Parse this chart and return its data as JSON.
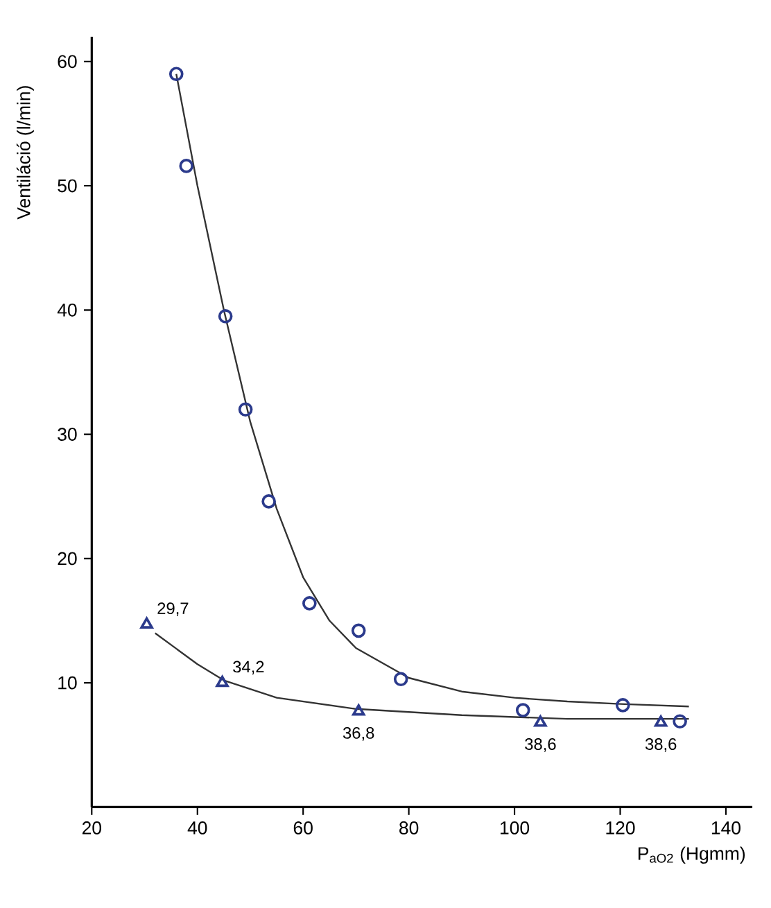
{
  "chart_data": {
    "type": "scatter",
    "xlabel": "P$_{aO2}$ (Hgmm)",
    "ylabel": "Ventiláció (l/min)",
    "xlim": [
      20,
      145
    ],
    "ylim": [
      0,
      62
    ],
    "xticks": [
      20,
      40,
      60,
      80,
      100,
      120,
      140
    ],
    "yticks": [
      10,
      20,
      30,
      40,
      50,
      60
    ],
    "annotations": [
      {
        "text": "29,7",
        "x": 30.4,
        "y": 14.7
      },
      {
        "text": "34,2",
        "x": 44.7,
        "y": 10
      },
      {
        "text": "36,8",
        "x": 70.5,
        "y": 7.7
      },
      {
        "text": "38,6",
        "x": 104.9,
        "y": 6.8
      },
      {
        "text": "38,6",
        "x": 127.7,
        "y": 6.8
      }
    ],
    "series": [
      {
        "marker": "circle",
        "color": "#2b3a8c",
        "x": [
          36,
          37.9,
          45.3,
          49.1,
          53.5,
          61.2,
          70.5,
          78.5,
          101.6,
          120.5,
          131.3
        ],
        "values": [
          59,
          51.6,
          39.5,
          32,
          24.6,
          16.4,
          14.2,
          10.3,
          7.8,
          8.2,
          6.9
        ]
      },
      {
        "marker": "triangle",
        "color": "#2b3a8c",
        "x": [
          30.4,
          44.7,
          70.5,
          104.9,
          127.7
        ],
        "values": [
          14.7,
          10,
          7.7,
          6.8,
          6.8
        ]
      },
      {
        "type": "line",
        "marker": "none",
        "color": "#333333",
        "x": [
          36,
          40,
          45,
          50,
          55,
          60,
          65,
          70,
          80,
          90,
          100,
          110,
          120,
          133
        ],
        "values": [
          59,
          50,
          40,
          31,
          24,
          18.5,
          15,
          12.8,
          10.4,
          9.3,
          8.8,
          8.5,
          8.3,
          8.1
        ]
      },
      {
        "type": "line",
        "marker": "none",
        "color": "#333333",
        "x": [
          32,
          40,
          45,
          55,
          70,
          90,
          110,
          133
        ],
        "values": [
          14,
          11.5,
          10.2,
          8.8,
          7.9,
          7.4,
          7.1,
          7.1
        ]
      }
    ]
  }
}
